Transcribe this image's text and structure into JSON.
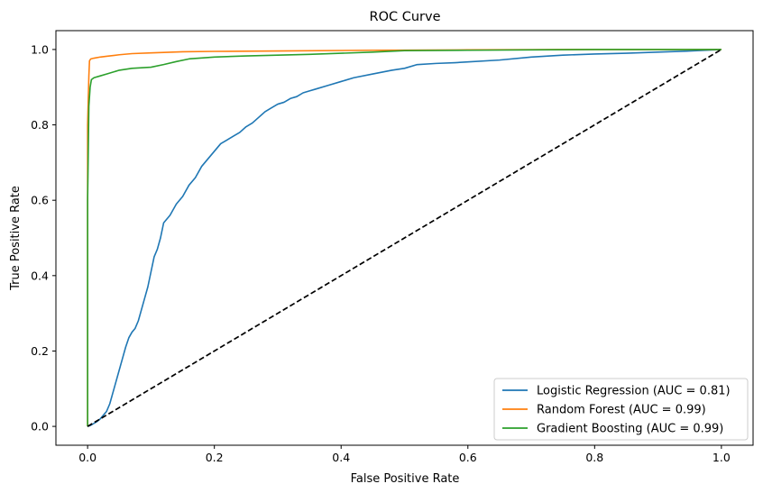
{
  "chart_data": {
    "type": "line",
    "title": "ROC Curve",
    "xlabel": "False Positive Rate",
    "ylabel": "True Positive Rate",
    "xlim": [
      -0.05,
      1.05
    ],
    "ylim": [
      -0.05,
      1.05
    ],
    "xticks": [
      0.0,
      0.2,
      0.4,
      0.6,
      0.8,
      1.0
    ],
    "yticks": [
      0.0,
      0.2,
      0.4,
      0.6,
      0.8,
      1.0
    ],
    "tick_labels": [
      "0.0",
      "0.2",
      "0.4",
      "0.6",
      "0.8",
      "1.0"
    ],
    "grid": false,
    "legend_position": "lower-right",
    "series": [
      {
        "name": "Logistic Regression (AUC = 0.81)",
        "color": "#1f77b4",
        "x": [
          0,
          0.005,
          0.01,
          0.015,
          0.02,
          0.025,
          0.03,
          0.035,
          0.04,
          0.045,
          0.05,
          0.055,
          0.06,
          0.065,
          0.07,
          0.075,
          0.08,
          0.085,
          0.09,
          0.095,
          0.1,
          0.105,
          0.11,
          0.115,
          0.12,
          0.13,
          0.14,
          0.15,
          0.16,
          0.17,
          0.18,
          0.19,
          0.2,
          0.21,
          0.22,
          0.23,
          0.24,
          0.25,
          0.26,
          0.27,
          0.28,
          0.29,
          0.3,
          0.31,
          0.32,
          0.33,
          0.34,
          0.35,
          0.36,
          0.38,
          0.4,
          0.42,
          0.45,
          0.48,
          0.5,
          0.52,
          0.55,
          0.58,
          0.6,
          0.65,
          0.7,
          0.75,
          0.8,
          0.85,
          0.9,
          0.95,
          1.0
        ],
        "y": [
          0,
          0.003,
          0.008,
          0.013,
          0.02,
          0.03,
          0.04,
          0.06,
          0.09,
          0.12,
          0.15,
          0.18,
          0.21,
          0.235,
          0.25,
          0.26,
          0.28,
          0.31,
          0.34,
          0.37,
          0.41,
          0.45,
          0.47,
          0.5,
          0.54,
          0.56,
          0.59,
          0.61,
          0.64,
          0.66,
          0.69,
          0.71,
          0.73,
          0.75,
          0.76,
          0.77,
          0.78,
          0.795,
          0.805,
          0.82,
          0.835,
          0.845,
          0.855,
          0.86,
          0.87,
          0.875,
          0.885,
          0.89,
          0.895,
          0.905,
          0.915,
          0.925,
          0.935,
          0.945,
          0.95,
          0.96,
          0.963,
          0.965,
          0.967,
          0.972,
          0.98,
          0.985,
          0.988,
          0.99,
          0.993,
          0.996,
          1.0
        ]
      },
      {
        "name": "Random Forest (AUC = 0.99)",
        "color": "#ff7f0e",
        "x": [
          0,
          0.0,
          0.002,
          0.003,
          0.005,
          0.01,
          0.02,
          0.03,
          0.05,
          0.07,
          0.1,
          0.15,
          0.2,
          0.3,
          0.45,
          0.6,
          0.8,
          1.0
        ],
        "y": [
          0,
          0.8,
          0.93,
          0.97,
          0.975,
          0.977,
          0.98,
          0.982,
          0.986,
          0.989,
          0.991,
          0.994,
          0.995,
          0.996,
          0.998,
          0.999,
          1.0,
          1.0
        ]
      },
      {
        "name": "Gradient Boosting (AUC = 0.99)",
        "color": "#2ca02c",
        "x": [
          0,
          0.0,
          0.002,
          0.004,
          0.006,
          0.01,
          0.02,
          0.03,
          0.05,
          0.07,
          0.1,
          0.12,
          0.14,
          0.16,
          0.2,
          0.25,
          0.3,
          0.35,
          0.4,
          0.45,
          0.5,
          0.6,
          0.7,
          0.8,
          0.9,
          1.0
        ],
        "y": [
          0,
          0.6,
          0.85,
          0.9,
          0.92,
          0.925,
          0.93,
          0.935,
          0.945,
          0.95,
          0.953,
          0.96,
          0.968,
          0.975,
          0.98,
          0.983,
          0.985,
          0.987,
          0.99,
          0.993,
          0.997,
          0.998,
          0.999,
          1.0,
          1.0,
          1.0
        ]
      },
      {
        "name": "",
        "color": "#000000",
        "dashed": true,
        "x": [
          0,
          1
        ],
        "y": [
          0,
          1
        ]
      }
    ]
  }
}
